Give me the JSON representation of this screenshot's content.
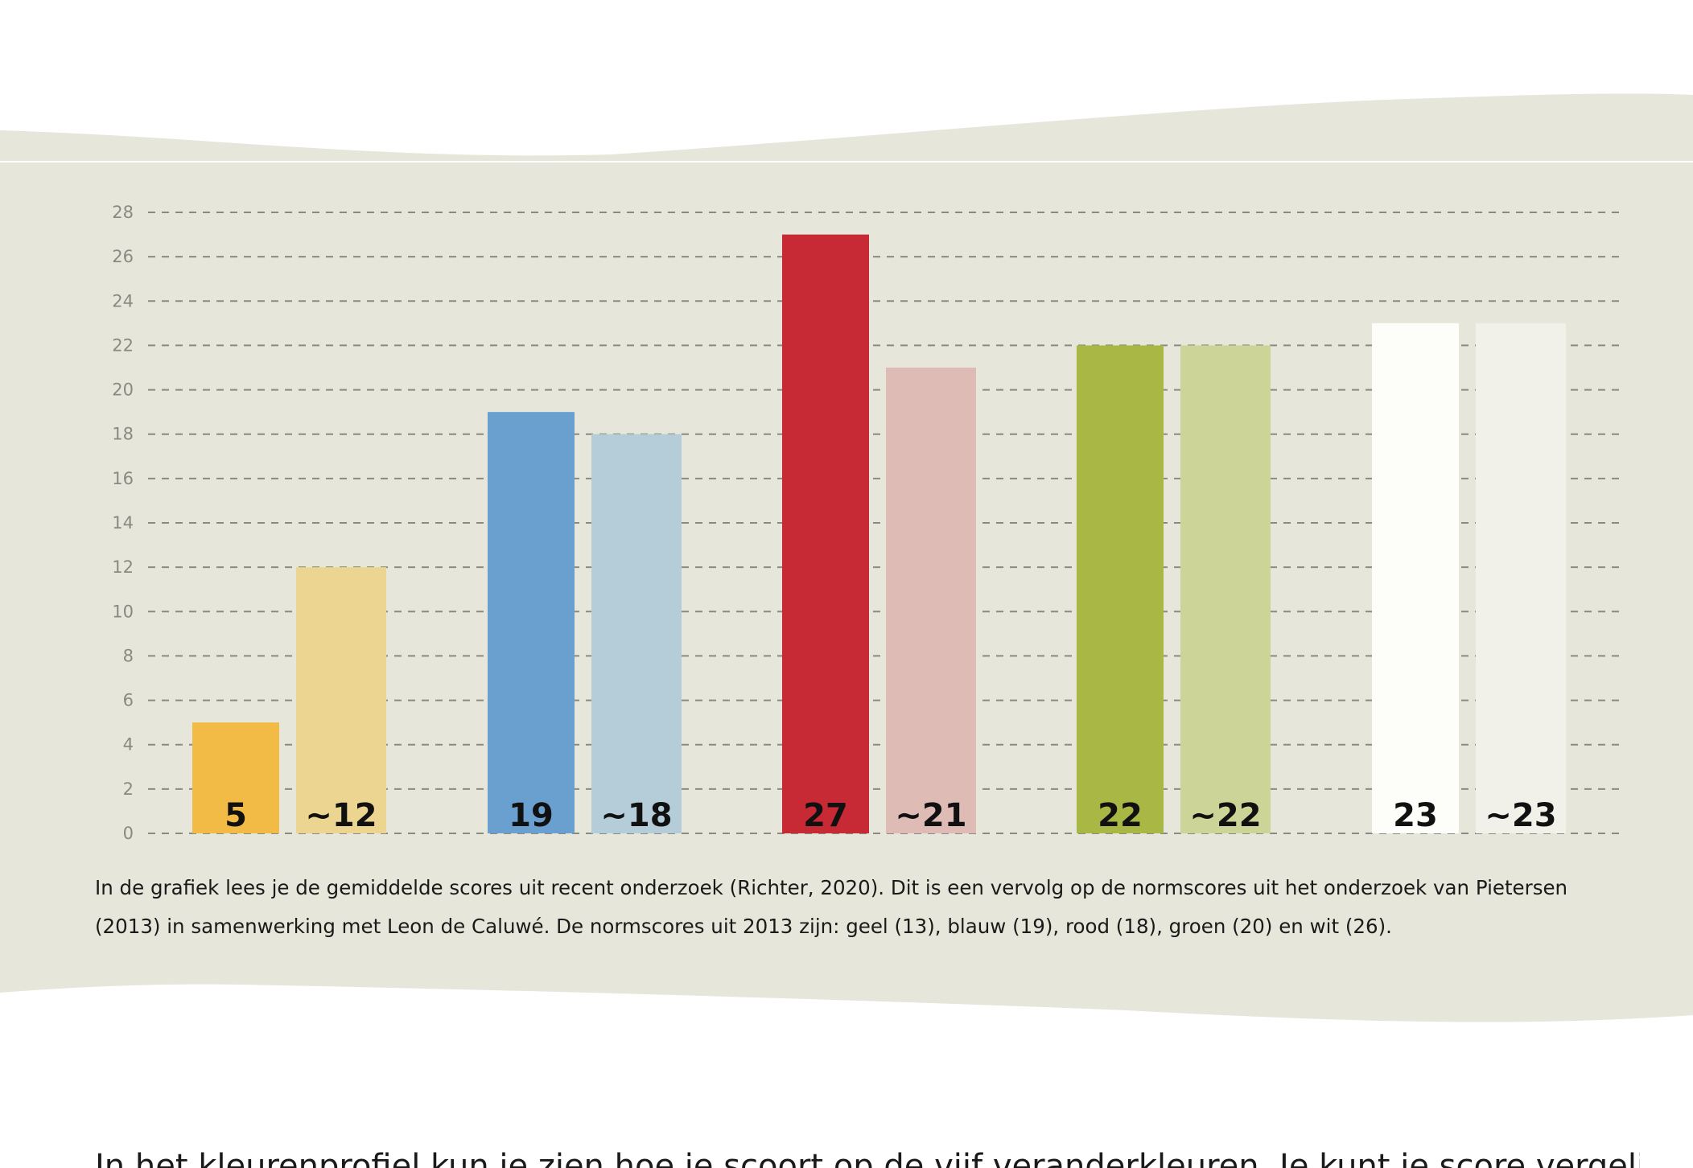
{
  "colors": {
    "band": "#e6e6da",
    "grid": "#8a8a82",
    "text": "#1a1a1a"
  },
  "chart_data": {
    "type": "bar",
    "categories": [
      "geel",
      "blauw",
      "rood",
      "groen",
      "wit"
    ],
    "series": [
      {
        "values": [
          5,
          19,
          27,
          22,
          23
        ],
        "labels": [
          "5",
          "19",
          "27",
          "22",
          "23"
        ],
        "colors": [
          "#f2bb45",
          "#6aa0d0",
          "#c72a35",
          "#a9b744",
          "#fdfdfa"
        ]
      },
      {
        "values": [
          12,
          18,
          21,
          22,
          23
        ],
        "labels": [
          "~12",
          "~18",
          "~21",
          "~22",
          "~23"
        ],
        "colors": [
          "#ecd591",
          "#b4cdd9",
          "#dfbbb5",
          "#cdd497",
          "#f1f1ea"
        ]
      }
    ],
    "y_ticks": [
      0,
      2,
      4,
      6,
      8,
      10,
      12,
      14,
      16,
      18,
      20,
      22,
      24,
      26,
      28
    ],
    "ylim": [
      0,
      28
    ],
    "grid": true,
    "title": "",
    "xlabel": "",
    "ylabel": ""
  },
  "caption": "In de grafiek lees je de gemiddelde scores uit recent onderzoek (Richter, 2020). Dit is een vervolg op de normscores uit het onderzoek van Pietersen (2013) in samenwerking met Leon de Caluwé. De normscores uit 2013 zijn: geel (13), blauw (19), rood (18), groen (20) en wit (26).",
  "body_text": "In het kleurenprofiel kun je zien hoe je scoort op de vijf veranderkleuren. Je kunt je score vergelijken ten opzichte van"
}
